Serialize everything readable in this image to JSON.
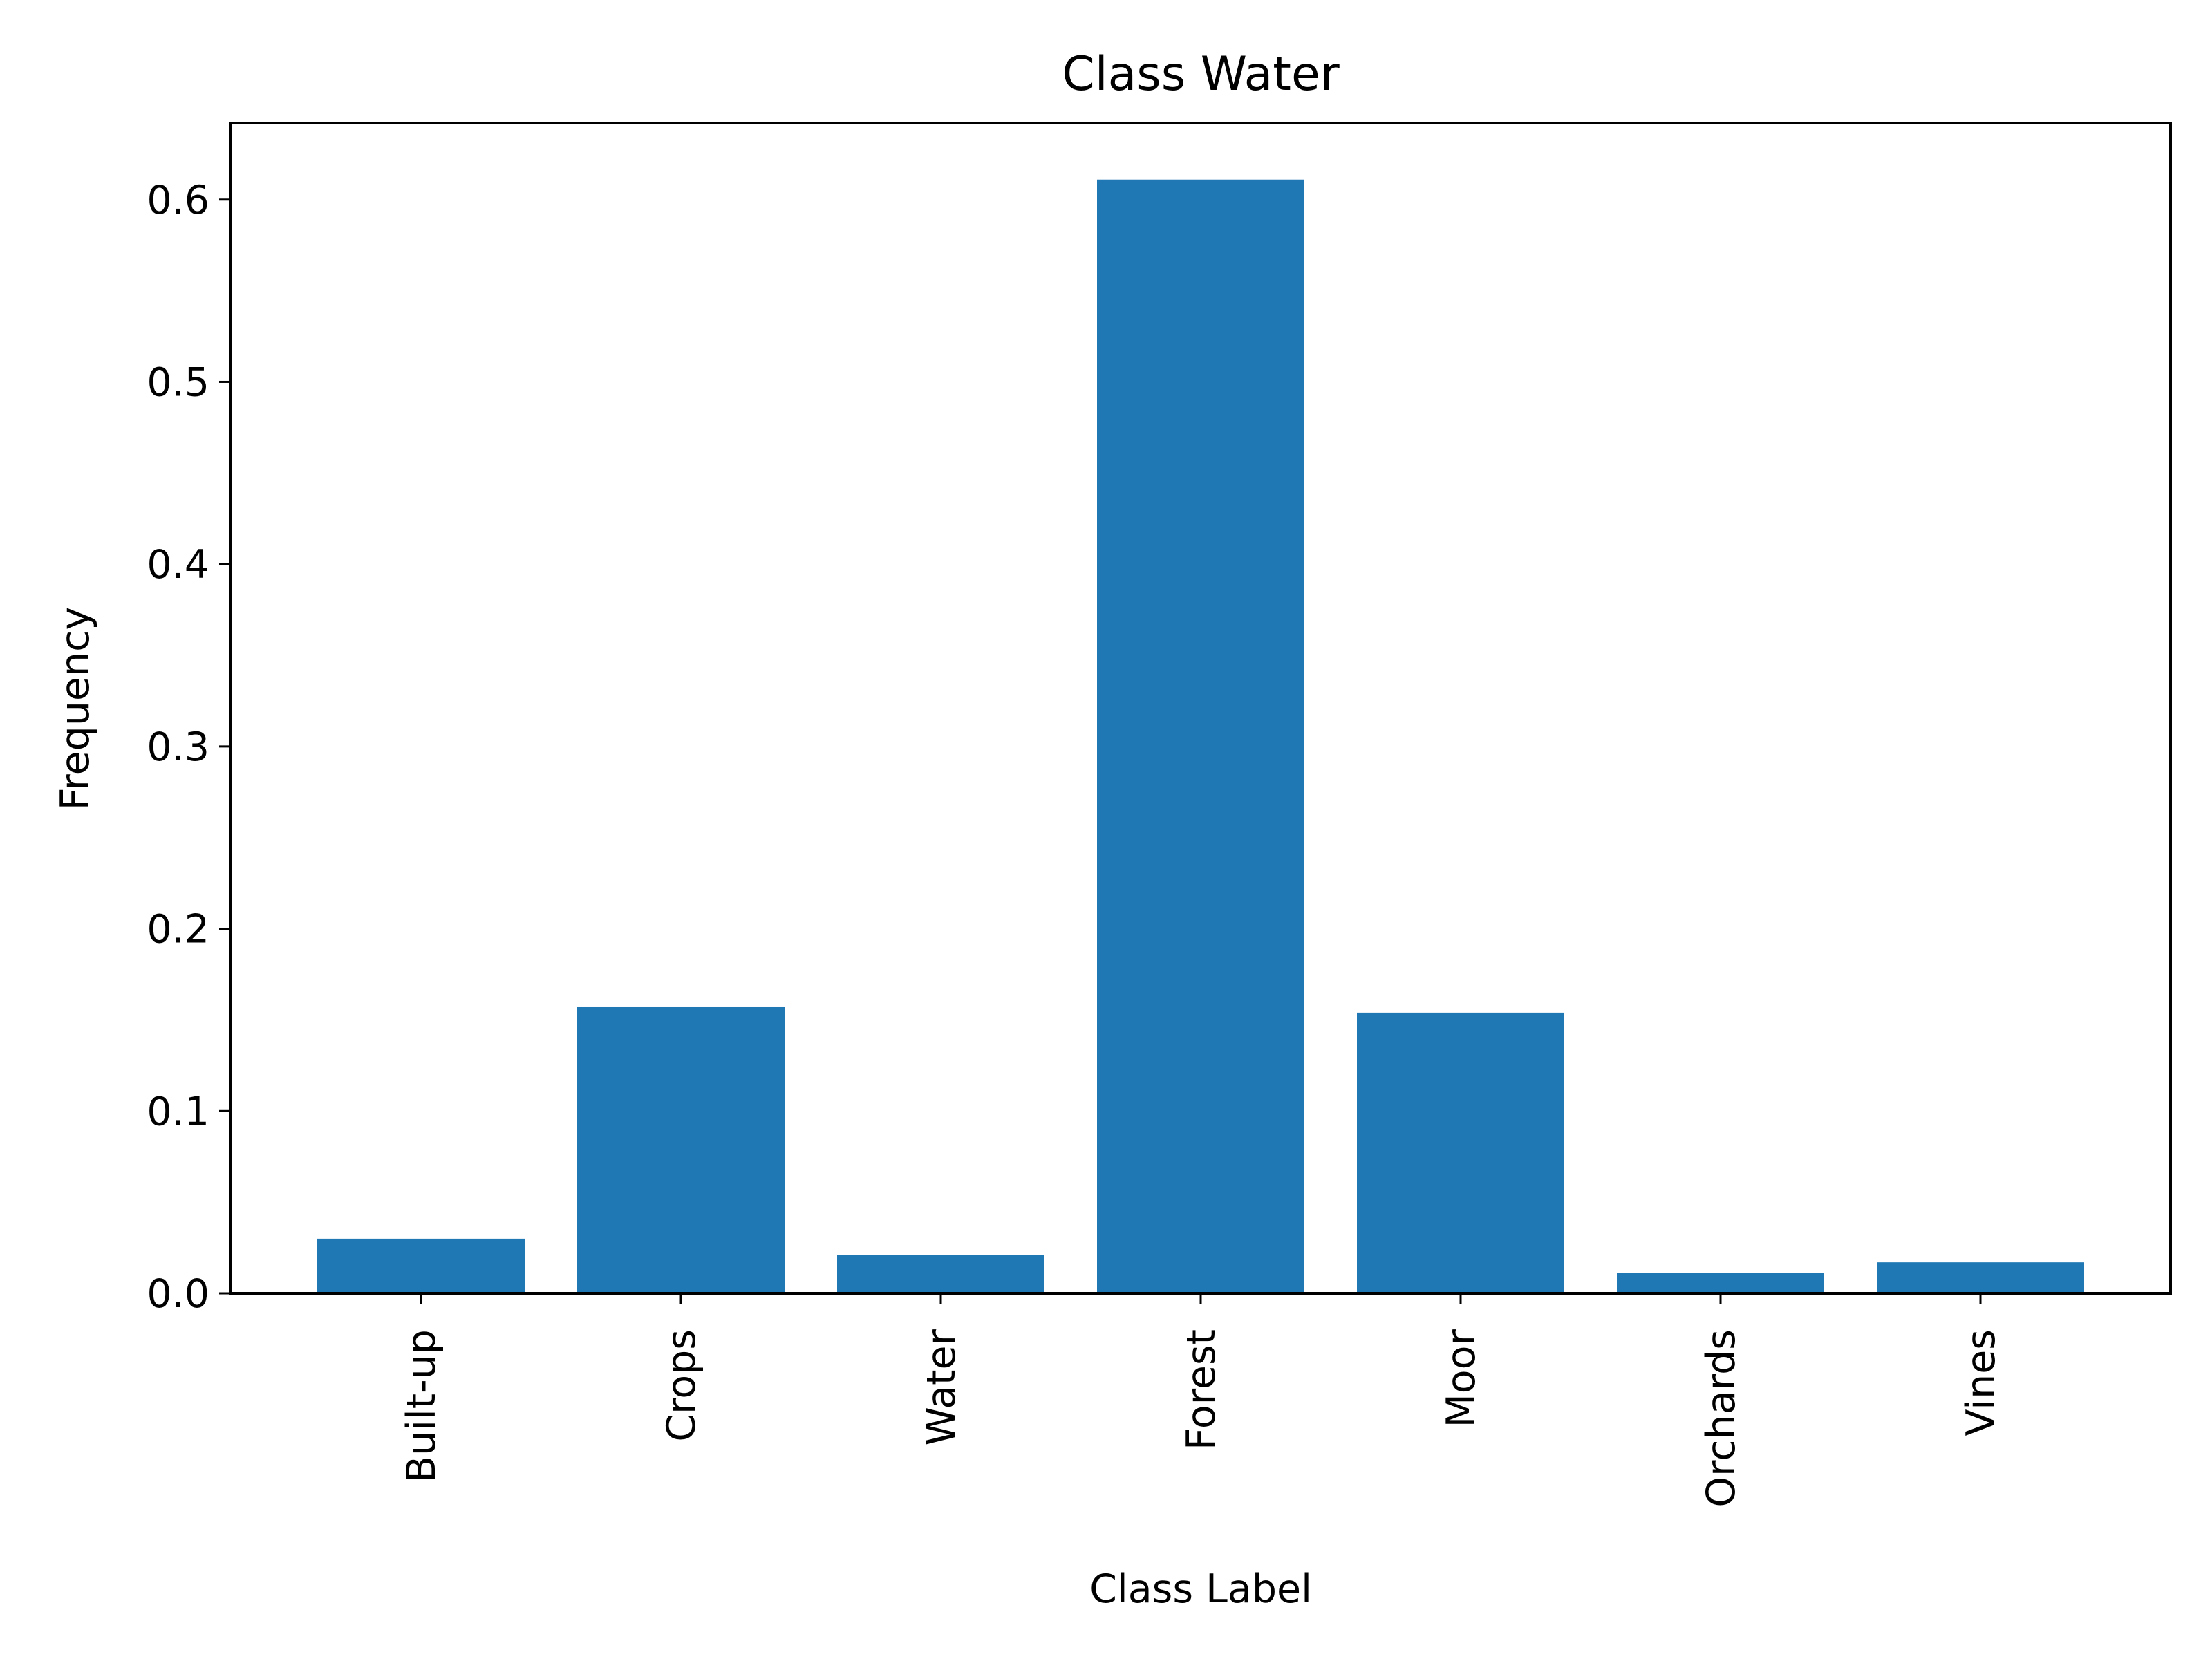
{
  "chart_data": {
    "type": "bar",
    "title": "Class Water",
    "xlabel": "Class Label",
    "ylabel": "Frequency",
    "categories": [
      "Built-up",
      "Crops",
      "Water",
      "Forest",
      "Moor",
      "Orchards",
      "Vines"
    ],
    "values": [
      0.03,
      0.157,
      0.021,
      0.611,
      0.154,
      0.011,
      0.017
    ],
    "ylim": [
      0,
      0.642
    ],
    "yticks": [
      0.0,
      0.1,
      0.2,
      0.3,
      0.4,
      0.5,
      0.6
    ],
    "ytick_labels": [
      "0.0",
      "0.1",
      "0.2",
      "0.3",
      "0.4",
      "0.5",
      "0.6"
    ],
    "grid": false,
    "bar_color": "#1f77b4"
  }
}
